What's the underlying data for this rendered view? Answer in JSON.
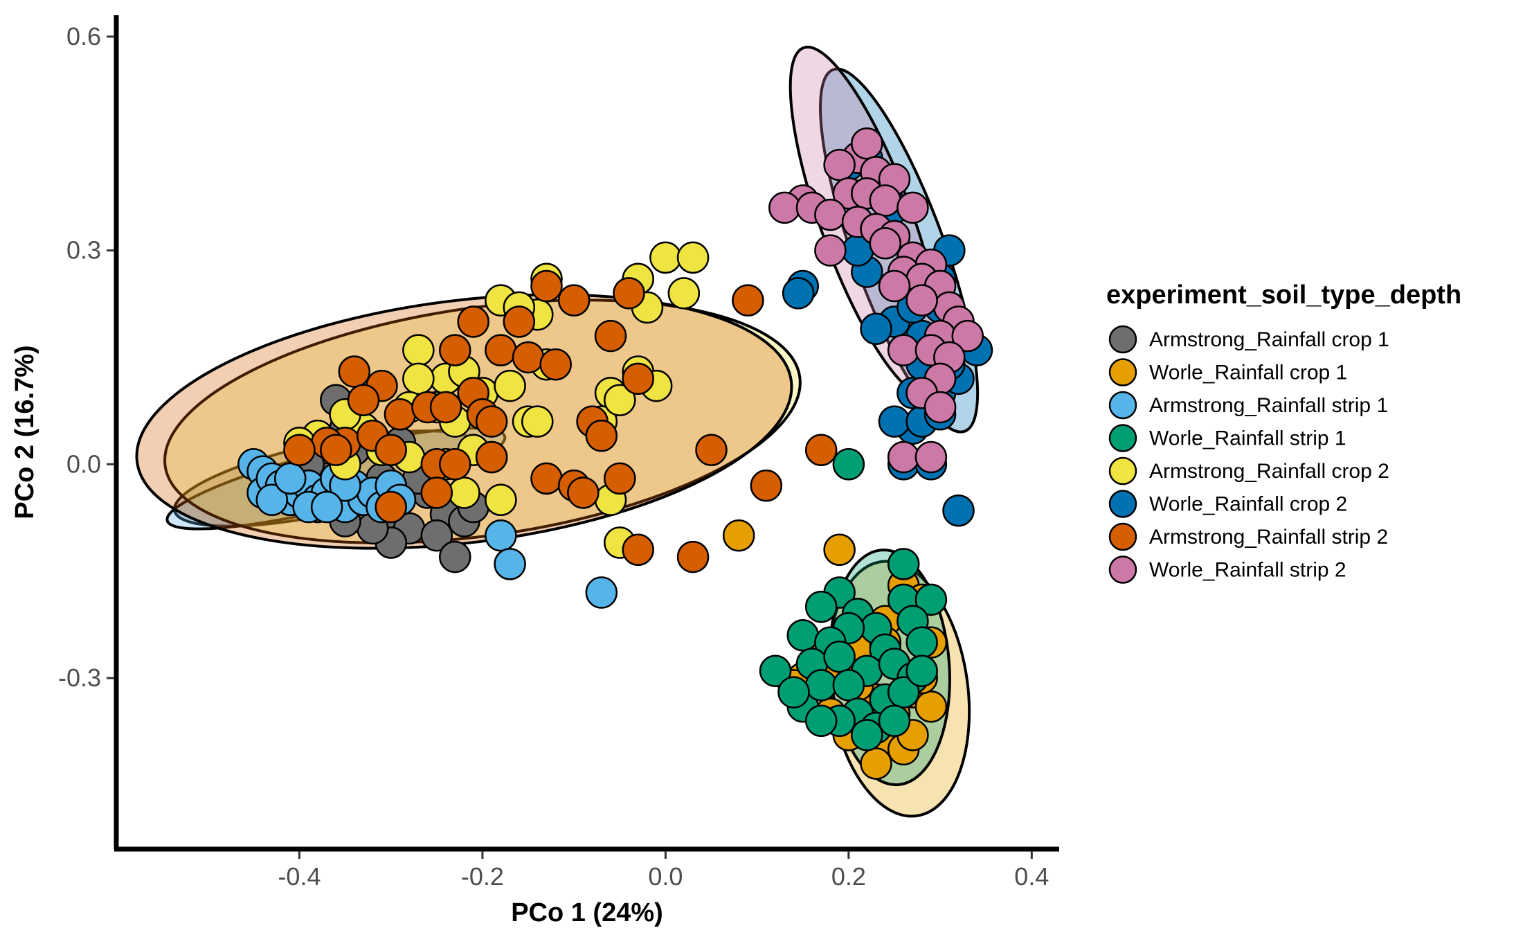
{
  "chart_data": {
    "type": "scatter",
    "title": "",
    "xlabel": "PCo 1  (24%)",
    "ylabel": "PCo 2  (16.7%)",
    "xlim": [
      -0.6,
      0.43
    ],
    "ylim": [
      -0.54,
      0.63
    ],
    "xticks": [
      -0.4,
      -0.2,
      0.0,
      0.2,
      0.4
    ],
    "xtick_labels": [
      "-0.4",
      "-0.2",
      "0.0",
      "0.2",
      "0.4"
    ],
    "yticks": [
      -0.3,
      0.0,
      0.3,
      0.6
    ],
    "ytick_labels": [
      "-0.3",
      "0.0",
      "0.3",
      "0.6"
    ],
    "grid": false,
    "legend": {
      "title": "experiment_soil_type_depth",
      "placement": "right"
    },
    "series": [
      {
        "name": "Armstrong_Rainfall crop 1",
        "color": "#6e6e6e",
        "ellipse": {
          "cx": -0.37,
          "cy": -0.02,
          "rx": 0.17,
          "ry": 0.05,
          "angle": -12
        },
        "points": [
          [
            -0.36,
            0.09
          ],
          [
            -0.35,
            0.05
          ],
          [
            -0.34,
            0.02
          ],
          [
            -0.37,
            -0.02
          ],
          [
            -0.36,
            -0.04
          ],
          [
            -0.38,
            -0.06
          ],
          [
            -0.33,
            -0.05
          ],
          [
            -0.3,
            -0.07
          ],
          [
            -0.28,
            -0.09
          ],
          [
            -0.26,
            -0.04
          ],
          [
            -0.24,
            -0.07
          ],
          [
            -0.22,
            -0.08
          ],
          [
            -0.25,
            -0.1
          ],
          [
            -0.23,
            -0.13
          ],
          [
            -0.3,
            -0.11
          ],
          [
            -0.32,
            -0.09
          ],
          [
            -0.35,
            -0.08
          ],
          [
            -0.4,
            -0.03
          ],
          [
            -0.42,
            -0.04
          ],
          [
            -0.27,
            -0.02
          ],
          [
            -0.29,
            0.03
          ],
          [
            -0.31,
            -0.02
          ],
          [
            -0.21,
            -0.06
          ],
          [
            -0.39,
            0.0
          ],
          [
            -0.41,
            -0.05
          ]
        ]
      },
      {
        "name": "Worle_Rainfall crop 1",
        "color": "#e69f00",
        "ellipse": {
          "cx": 0.255,
          "cy": -0.315,
          "rx": 0.075,
          "ry": 0.18,
          "angle": -8
        },
        "points": [
          [
            0.19,
            -0.12
          ],
          [
            0.26,
            -0.17
          ],
          [
            0.28,
            -0.19
          ],
          [
            0.24,
            -0.22
          ],
          [
            0.29,
            -0.25
          ],
          [
            0.21,
            -0.26
          ],
          [
            0.15,
            -0.3
          ],
          [
            0.14,
            -0.31
          ],
          [
            0.17,
            -0.27
          ],
          [
            0.23,
            -0.33
          ],
          [
            0.25,
            -0.35
          ],
          [
            0.27,
            -0.32
          ],
          [
            0.29,
            -0.34
          ],
          [
            0.22,
            -0.37
          ],
          [
            0.24,
            -0.39
          ],
          [
            0.26,
            -0.4
          ],
          [
            0.2,
            -0.38
          ],
          [
            0.23,
            -0.42
          ],
          [
            0.18,
            -0.35
          ],
          [
            0.28,
            -0.3
          ],
          [
            0.25,
            -0.28
          ],
          [
            0.27,
            -0.38
          ],
          [
            0.21,
            -0.31
          ],
          [
            0.24,
            -0.25
          ],
          [
            0.19,
            -0.29
          ],
          [
            0.08,
            -0.1
          ]
        ]
      },
      {
        "name": "Armstrong_Rainfall strip 1",
        "color": "#56b4e9",
        "ellipse": {
          "cx": -0.36,
          "cy": -0.02,
          "rx": 0.19,
          "ry": 0.04,
          "angle": -14
        },
        "points": [
          [
            -0.45,
            0.0
          ],
          [
            -0.44,
            -0.01
          ],
          [
            -0.44,
            -0.04
          ],
          [
            -0.43,
            -0.02
          ],
          [
            -0.42,
            -0.03
          ],
          [
            -0.41,
            -0.05
          ],
          [
            -0.4,
            -0.04
          ],
          [
            -0.39,
            -0.03
          ],
          [
            -0.38,
            -0.05
          ],
          [
            -0.37,
            -0.04
          ],
          [
            -0.36,
            -0.02
          ],
          [
            -0.35,
            -0.06
          ],
          [
            -0.34,
            -0.03
          ],
          [
            -0.33,
            -0.05
          ],
          [
            -0.32,
            -0.04
          ],
          [
            -0.31,
            -0.06
          ],
          [
            -0.3,
            -0.03
          ],
          [
            -0.29,
            -0.05
          ],
          [
            -0.35,
            -0.03
          ],
          [
            -0.39,
            -0.06
          ],
          [
            -0.43,
            -0.05
          ],
          [
            -0.18,
            -0.1
          ],
          [
            -0.17,
            -0.14
          ],
          [
            -0.07,
            -0.18
          ],
          [
            -0.37,
            -0.06
          ],
          [
            -0.41,
            -0.02
          ]
        ]
      },
      {
        "name": "Worle_Rainfall strip 1",
        "color": "#009e73",
        "ellipse": {
          "cx": 0.245,
          "cy": -0.285,
          "rx": 0.065,
          "ry": 0.165,
          "angle": -4
        },
        "points": [
          [
            0.2,
            0.0
          ],
          [
            0.26,
            -0.14
          ],
          [
            0.19,
            -0.18
          ],
          [
            0.17,
            -0.2
          ],
          [
            0.21,
            -0.21
          ],
          [
            0.26,
            -0.19
          ],
          [
            0.29,
            -0.19
          ],
          [
            0.27,
            -0.22
          ],
          [
            0.23,
            -0.23
          ],
          [
            0.2,
            -0.23
          ],
          [
            0.15,
            -0.24
          ],
          [
            0.18,
            -0.25
          ],
          [
            0.24,
            -0.26
          ],
          [
            0.28,
            -0.25
          ],
          [
            0.12,
            -0.29
          ],
          [
            0.16,
            -0.28
          ],
          [
            0.19,
            -0.27
          ],
          [
            0.22,
            -0.29
          ],
          [
            0.25,
            -0.28
          ],
          [
            0.27,
            -0.3
          ],
          [
            0.15,
            -0.34
          ],
          [
            0.17,
            -0.31
          ],
          [
            0.2,
            -0.31
          ],
          [
            0.24,
            -0.33
          ],
          [
            0.26,
            -0.32
          ],
          [
            0.21,
            -0.35
          ],
          [
            0.23,
            -0.37
          ],
          [
            0.19,
            -0.36
          ],
          [
            0.17,
            -0.36
          ],
          [
            0.25,
            -0.36
          ],
          [
            0.22,
            -0.38
          ],
          [
            0.14,
            -0.32
          ],
          [
            0.28,
            -0.29
          ]
        ]
      },
      {
        "name": "Armstrong_Rainfall crop 2",
        "color": "#f0e442",
        "ellipse": {
          "cx": -0.2,
          "cy": 0.06,
          "rx": 0.35,
          "ry": 0.16,
          "angle": -8
        },
        "points": [
          [
            0.0,
            0.29
          ],
          [
            0.03,
            0.29
          ],
          [
            -0.03,
            0.26
          ],
          [
            0.02,
            0.24
          ],
          [
            -0.02,
            0.22
          ],
          [
            -0.18,
            0.23
          ],
          [
            -0.13,
            0.26
          ],
          [
            -0.14,
            0.21
          ],
          [
            -0.16,
            0.22
          ],
          [
            -0.27,
            0.16
          ],
          [
            -0.24,
            0.12
          ],
          [
            -0.22,
            0.13
          ],
          [
            -0.27,
            0.12
          ],
          [
            -0.2,
            0.1
          ],
          [
            -0.17,
            0.11
          ],
          [
            -0.13,
            0.14
          ],
          [
            -0.06,
            0.1
          ],
          [
            -0.03,
            0.13
          ],
          [
            -0.01,
            0.11
          ],
          [
            -0.25,
            0.08
          ],
          [
            -0.23,
            0.06
          ],
          [
            -0.15,
            0.06
          ],
          [
            -0.14,
            0.06
          ],
          [
            -0.07,
            0.06
          ],
          [
            -0.05,
            0.09
          ],
          [
            -0.21,
            0.02
          ],
          [
            -0.19,
            0.01
          ],
          [
            -0.22,
            -0.04
          ],
          [
            -0.18,
            -0.05
          ],
          [
            -0.06,
            -0.05
          ],
          [
            -0.05,
            -0.11
          ],
          [
            -0.33,
            0.05
          ],
          [
            -0.35,
            0.07
          ],
          [
            -0.38,
            0.04
          ],
          [
            -0.4,
            0.03
          ],
          [
            -0.31,
            0.02
          ],
          [
            -0.28,
            0.01
          ],
          [
            -0.24,
            0.0
          ],
          [
            -0.28,
            0.08
          ],
          [
            -0.35,
            0.0
          ]
        ]
      },
      {
        "name": "Worle_Rainfall crop 2",
        "color": "#0072b2",
        "ellipse": {
          "cx": 0.255,
          "cy": 0.3,
          "rx": 0.05,
          "ry": 0.27,
          "angle": -20
        },
        "points": [
          [
            0.15,
            0.25
          ],
          [
            0.145,
            0.24
          ],
          [
            0.32,
            -0.065
          ],
          [
            0.26,
            -0.0
          ],
          [
            0.29,
            0.0
          ],
          [
            0.27,
            0.05
          ],
          [
            0.25,
            0.06
          ],
          [
            0.28,
            0.06
          ],
          [
            0.27,
            0.1
          ],
          [
            0.3,
            0.1
          ],
          [
            0.32,
            0.12
          ],
          [
            0.31,
            0.14
          ],
          [
            0.28,
            0.18
          ],
          [
            0.25,
            0.2
          ],
          [
            0.27,
            0.22
          ],
          [
            0.3,
            0.22
          ],
          [
            0.3,
            0.26
          ],
          [
            0.28,
            0.28
          ],
          [
            0.22,
            0.27
          ],
          [
            0.21,
            0.3
          ],
          [
            0.24,
            0.32
          ],
          [
            0.25,
            0.36
          ],
          [
            0.23,
            0.38
          ],
          [
            0.2,
            0.42
          ],
          [
            0.22,
            0.43
          ],
          [
            0.24,
            0.39
          ],
          [
            0.31,
            0.3
          ],
          [
            0.26,
            0.26
          ],
          [
            0.28,
            0.14
          ],
          [
            0.32,
            0.17
          ],
          [
            0.3,
            0.07
          ],
          [
            0.23,
            0.19
          ],
          [
            0.34,
            0.16
          ]
        ]
      },
      {
        "name": "Armstrong_Rainfall strip 2",
        "color": "#d55e00",
        "ellipse": {
          "cx": -0.22,
          "cy": 0.06,
          "rx": 0.36,
          "ry": 0.17,
          "angle": -7
        },
        "points": [
          [
            -0.13,
            0.25
          ],
          [
            -0.1,
            0.23
          ],
          [
            -0.04,
            0.24
          ],
          [
            0.09,
            0.23
          ],
          [
            -0.21,
            0.2
          ],
          [
            -0.16,
            0.2
          ],
          [
            -0.06,
            0.18
          ],
          [
            -0.23,
            0.16
          ],
          [
            -0.18,
            0.16
          ],
          [
            -0.15,
            0.15
          ],
          [
            -0.12,
            0.14
          ],
          [
            -0.34,
            0.13
          ],
          [
            -0.31,
            0.11
          ],
          [
            -0.33,
            0.09
          ],
          [
            -0.29,
            0.07
          ],
          [
            -0.26,
            0.08
          ],
          [
            -0.21,
            0.1
          ],
          [
            -0.2,
            0.07
          ],
          [
            -0.24,
            0.08
          ],
          [
            -0.03,
            0.12
          ],
          [
            -0.19,
            0.06
          ],
          [
            -0.08,
            0.06
          ],
          [
            -0.07,
            0.04
          ],
          [
            -0.35,
            0.03
          ],
          [
            -0.32,
            0.04
          ],
          [
            -0.3,
            0.02
          ],
          [
            -0.37,
            0.03
          ],
          [
            -0.4,
            0.02
          ],
          [
            -0.36,
            0.02
          ],
          [
            -0.25,
            0.0
          ],
          [
            -0.23,
            0.0
          ],
          [
            -0.19,
            0.01
          ],
          [
            -0.13,
            -0.02
          ],
          [
            -0.1,
            -0.03
          ],
          [
            -0.09,
            -0.04
          ],
          [
            -0.05,
            -0.02
          ],
          [
            -0.25,
            -0.04
          ],
          [
            -0.3,
            -0.06
          ],
          [
            0.05,
            0.02
          ],
          [
            0.17,
            0.02
          ],
          [
            0.11,
            -0.03
          ],
          [
            -0.03,
            -0.12
          ],
          [
            0.03,
            -0.13
          ]
        ]
      },
      {
        "name": "Worle_Rainfall strip 2",
        "color": "#cc79a7",
        "ellipse": {
          "cx": 0.22,
          "cy": 0.34,
          "rx": 0.05,
          "ry": 0.26,
          "angle": -20
        },
        "points": [
          [
            0.21,
            0.43
          ],
          [
            0.22,
            0.45
          ],
          [
            0.19,
            0.42
          ],
          [
            0.23,
            0.41
          ],
          [
            0.25,
            0.4
          ],
          [
            0.2,
            0.38
          ],
          [
            0.22,
            0.38
          ],
          [
            0.24,
            0.37
          ],
          [
            0.27,
            0.36
          ],
          [
            0.15,
            0.37
          ],
          [
            0.13,
            0.36
          ],
          [
            0.16,
            0.36
          ],
          [
            0.18,
            0.35
          ],
          [
            0.21,
            0.34
          ],
          [
            0.23,
            0.33
          ],
          [
            0.25,
            0.32
          ],
          [
            0.27,
            0.29
          ],
          [
            0.24,
            0.31
          ],
          [
            0.29,
            0.28
          ],
          [
            0.26,
            0.27
          ],
          [
            0.28,
            0.26
          ],
          [
            0.3,
            0.25
          ],
          [
            0.31,
            0.22
          ],
          [
            0.32,
            0.2
          ],
          [
            0.3,
            0.18
          ],
          [
            0.33,
            0.18
          ],
          [
            0.26,
            0.16
          ],
          [
            0.29,
            0.16
          ],
          [
            0.31,
            0.15
          ],
          [
            0.3,
            0.12
          ],
          [
            0.28,
            0.1
          ],
          [
            0.3,
            0.08
          ],
          [
            0.26,
            0.01
          ],
          [
            0.29,
            0.01
          ],
          [
            0.18,
            0.3
          ],
          [
            0.25,
            0.25
          ],
          [
            0.28,
            0.23
          ]
        ]
      }
    ]
  }
}
